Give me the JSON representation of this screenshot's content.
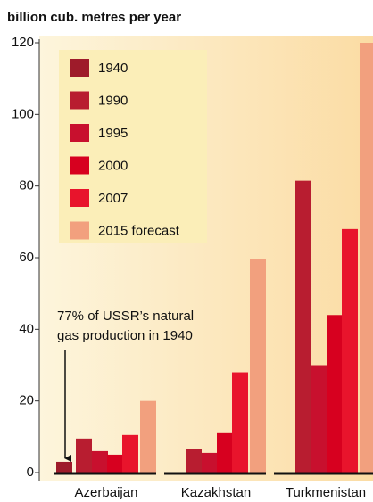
{
  "chart_data": {
    "type": "bar",
    "title": "billion cub. metres per year",
    "categories": [
      "Azerbaijan",
      "Kazakhstan",
      "Turkmenistan"
    ],
    "series": [
      {
        "name": "1940",
        "color": "#9e1b2a",
        "values": [
          3,
          null,
          null
        ]
      },
      {
        "name": "1990",
        "color": "#b81d30",
        "values": [
          9.5,
          6.5,
          81.5
        ]
      },
      {
        "name": "1995",
        "color": "#c8102e",
        "values": [
          6,
          5.5,
          30
        ]
      },
      {
        "name": "2000",
        "color": "#d7001f",
        "values": [
          5,
          11,
          44
        ]
      },
      {
        "name": "2007",
        "color": "#e8142c",
        "values": [
          10.5,
          28,
          68
        ]
      },
      {
        "name": "2015 forecast",
        "color": "#f2a07e",
        "values": [
          20,
          59.5,
          120
        ]
      }
    ],
    "ylim": [
      0,
      120
    ],
    "yticks": [
      0,
      20,
      40,
      60,
      80,
      100,
      120
    ],
    "annotation": [
      "77% of USSR’s natural",
      "gas production in 1940"
    ]
  }
}
